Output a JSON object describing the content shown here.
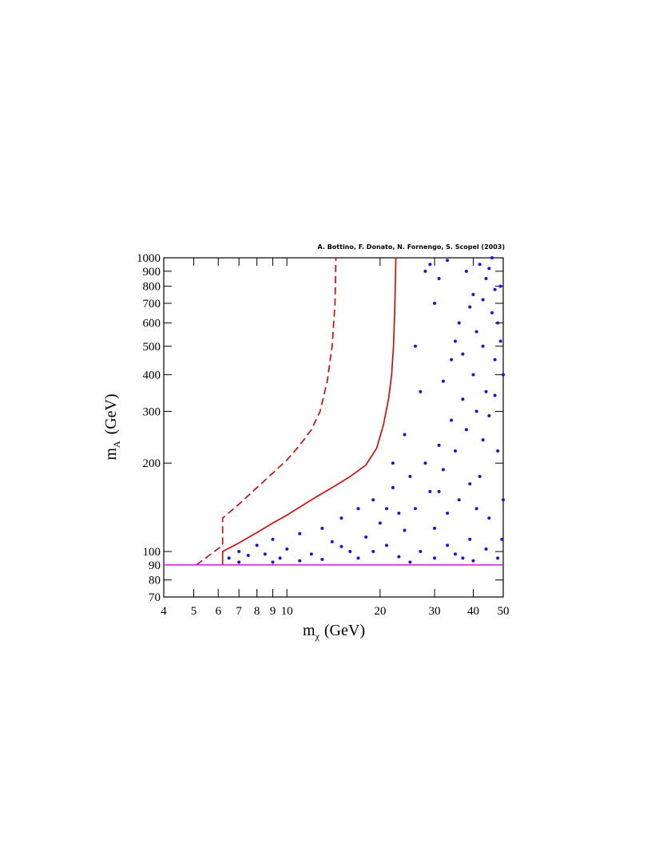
{
  "chart_data": {
    "type": "scatter",
    "annotation": "A. Bottino, F. Donato, N. Fornengo, S. Scopel (2003)",
    "xlabel": {
      "base": "m",
      "sub": "χ",
      "unit": "(GeV)"
    },
    "ylabel": {
      "base": "m",
      "sub": "A",
      "unit": "(GeV)"
    },
    "xlog": true,
    "ylog": true,
    "xlim": [
      4,
      50
    ],
    "ylim": [
      70,
      1000
    ],
    "xticks": [
      4,
      5,
      6,
      7,
      8,
      9,
      10,
      20,
      30,
      40,
      50
    ],
    "yticks": [
      70,
      80,
      90,
      100,
      200,
      300,
      400,
      500,
      600,
      700,
      800,
      900,
      1000
    ],
    "series": [
      {
        "kind": "points",
        "color": "#1414e6",
        "x": [
          6.5,
          7,
          7.5,
          8,
          8.5,
          9,
          9.5,
          10,
          11,
          12,
          13,
          14,
          15,
          16,
          17,
          18,
          19,
          20,
          21,
          22,
          23,
          24,
          25,
          26,
          27,
          28,
          29,
          30,
          31,
          32,
          33,
          34,
          35,
          36,
          37,
          38,
          39,
          40,
          41,
          42,
          43,
          44,
          45,
          46,
          47,
          48,
          49,
          49.5,
          36,
          38,
          40,
          42,
          44,
          46,
          48,
          34,
          30,
          29,
          32,
          35,
          37,
          39,
          41,
          43,
          45,
          47,
          50,
          50,
          26,
          28,
          27,
          33,
          31,
          45,
          43,
          41,
          39,
          37,
          35,
          33,
          31,
          25,
          23,
          21,
          19,
          17,
          15,
          13,
          11,
          9,
          7,
          24,
          22,
          47,
          49,
          48,
          44,
          40,
          30
        ],
        "values": [
          95,
          100,
          97,
          105,
          98,
          110,
          95,
          102,
          115,
          98,
          120,
          108,
          130,
          100,
          140,
          112,
          150,
          125,
          105,
          165,
          135,
          118,
          180,
          140,
          100,
          200,
          160,
          120,
          230,
          190,
          105,
          280,
          220,
          150,
          330,
          260,
          110,
          400,
          300,
          180,
          500,
          350,
          130,
          650,
          450,
          220,
          800,
          110,
          600,
          900,
          750,
          950,
          850,
          1000,
          600,
          450,
          700,
          950,
          380,
          520,
          470,
          680,
          560,
          720,
          920,
          780,
          400,
          150,
          500,
          900,
          350,
          980,
          850,
          290,
          240,
          140,
          170,
          95,
          98,
          135,
          160,
          92,
          96,
          140,
          100,
          95,
          104,
          94,
          93,
          92,
          92,
          250,
          200,
          340,
          520,
          95,
          102,
          93,
          95
        ]
      },
      {
        "kind": "line",
        "style": "solid",
        "color": "#d40000",
        "x": [
          6.2,
          6.2,
          7,
          8,
          9,
          10,
          12,
          14,
          16,
          18,
          19.5,
          20.5,
          21.3,
          21.8,
          22.1,
          22.3,
          22.5
        ],
        "values": [
          90,
          100,
          107,
          116,
          125,
          133,
          150,
          165,
          180,
          197,
          225,
          270,
          330,
          400,
          500,
          650,
          1000
        ]
      },
      {
        "kind": "line",
        "style": "dashed",
        "color": "#d40000",
        "x": [
          5.1,
          6.2,
          6.2,
          7,
          8,
          9,
          10,
          11,
          12,
          12.8,
          13.5,
          14,
          14.3,
          14.4
        ],
        "values": [
          90,
          105,
          130,
          145,
          165,
          185,
          205,
          230,
          260,
          300,
          380,
          500,
          700,
          1000
        ]
      },
      {
        "kind": "line",
        "style": "solid",
        "color": "#e020e0",
        "x": [
          4,
          50
        ],
        "values": [
          90,
          90
        ]
      }
    ]
  }
}
